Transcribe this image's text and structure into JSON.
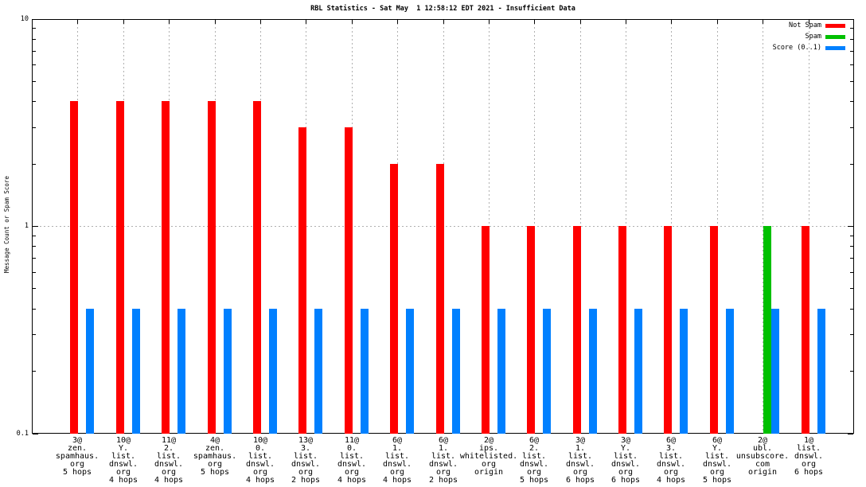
{
  "chart_data": {
    "type": "bar",
    "title": "RBL Statistics - Sat May  1 12:58:12 EDT 2021 - Insufficient Data",
    "ylabel": "Message Count or Spam Score",
    "yscale": "log",
    "ylim": [
      0.1,
      10
    ],
    "ytick_labels": [
      "10",
      "1",
      "0.1"
    ],
    "grid": true,
    "legend_position": "top-right-inside",
    "categories": [
      [
        "3@",
        "zen.",
        "spamhaus.",
        "org",
        "5 hops"
      ],
      [
        "10@",
        "Y.",
        "list.",
        "dnswl.",
        "org",
        "4 hops"
      ],
      [
        "11@",
        "2.",
        "list.",
        "dnswl.",
        "org",
        "4 hops"
      ],
      [
        "4@",
        "zen.",
        "spamhaus.",
        "org",
        "5 hops"
      ],
      [
        "10@",
        "0.",
        "list.",
        "dnswl.",
        "org",
        "4 hops"
      ],
      [
        "13@",
        "3.",
        "list.",
        "dnswl.",
        "org",
        "2 hops"
      ],
      [
        "11@",
        "0.",
        "list.",
        "dnswl.",
        "org",
        "4 hops"
      ],
      [
        "6@",
        "1.",
        "list.",
        "dnswl.",
        "org",
        "4 hops"
      ],
      [
        "6@",
        "1.",
        "list.",
        "dnswl.",
        "org",
        "2 hops"
      ],
      [
        "2@",
        "ips.",
        "whitelisted.",
        "org",
        "origin"
      ],
      [
        "6@",
        "2.",
        "list.",
        "dnswl.",
        "org",
        "5 hops"
      ],
      [
        "3@",
        "1.",
        "list.",
        "dnswl.",
        "org",
        "6 hops"
      ],
      [
        "3@",
        "Y.",
        "list.",
        "dnswl.",
        "org",
        "6 hops"
      ],
      [
        "6@",
        "3.",
        "list.",
        "dnswl.",
        "org",
        "4 hops"
      ],
      [
        "6@",
        "Y.",
        "list.",
        "dnswl.",
        "org",
        "5 hops"
      ],
      [
        "2@",
        "ubl.",
        "unsubscore.",
        "com",
        "origin"
      ],
      [
        "1@",
        "list.",
        "dnswl.",
        "org",
        "6 hops"
      ]
    ],
    "series": [
      {
        "name": "Not Spam",
        "color": "#ff0000",
        "values": [
          4,
          4,
          4,
          4,
          4,
          3,
          3,
          2,
          2,
          1,
          1,
          1,
          1,
          1,
          1,
          0,
          1
        ]
      },
      {
        "name": "Spam",
        "color": "#00c000",
        "values": [
          0,
          0,
          0,
          0,
          0,
          0,
          0,
          0,
          0,
          0,
          0,
          0,
          0,
          0,
          0,
          1,
          0
        ]
      },
      {
        "name": "Score (0..1)",
        "color": "#0080ff",
        "values": [
          0.4,
          0.4,
          0.4,
          0.4,
          0.4,
          0.4,
          0.4,
          0.4,
          0.4,
          0.4,
          0.4,
          0.4,
          0.4,
          0.4,
          0.4,
          0.4,
          0.4
        ]
      }
    ],
    "colors": {
      "grid": "#b0b0b0",
      "axis": "#000000",
      "background": "#ffffff"
    }
  }
}
